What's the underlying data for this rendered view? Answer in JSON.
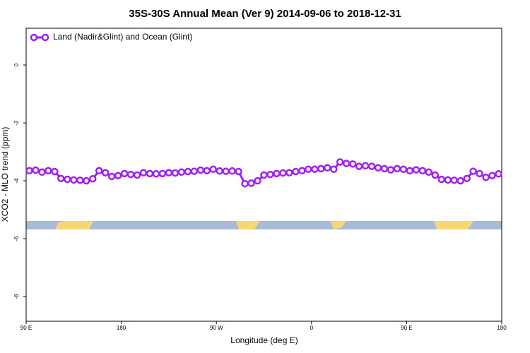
{
  "chart_data": {
    "type": "line",
    "title": "35S-30S Annual Mean (Ver 9)   2014-09-06 to 2018-12-31",
    "xlabel": "Longitude (deg E)",
    "ylabel": "XCO2 - MLO trend (ppm)",
    "x": [
      93,
      99,
      105,
      111,
      117,
      123,
      129,
      135,
      141,
      147,
      153,
      159,
      165,
      171,
      177,
      183,
      189,
      195,
      201,
      207,
      213,
      219,
      225,
      231,
      237,
      243,
      249,
      255,
      261,
      267,
      273,
      279,
      285,
      291,
      297,
      303,
      309,
      315,
      321,
      327,
      333,
      339,
      345,
      351,
      357,
      363,
      369,
      375,
      381,
      387,
      393,
      399,
      405,
      411,
      417,
      423,
      429,
      435,
      441,
      447,
      453,
      459,
      465,
      471,
      477,
      483,
      489,
      495,
      501,
      507,
      513,
      519,
      525,
      531,
      537
    ],
    "series": [
      {
        "name": "Land (Nadir&Glint) and Ocean (Glint)",
        "color": "#a020f0",
        "values": [
          -3.65,
          -3.63,
          -3.7,
          -3.65,
          -3.68,
          -3.92,
          -3.95,
          -3.97,
          -3.98,
          -4.0,
          -3.93,
          -3.65,
          -3.72,
          -3.85,
          -3.82,
          -3.75,
          -3.78,
          -3.8,
          -3.72,
          -3.75,
          -3.76,
          -3.75,
          -3.72,
          -3.73,
          -3.7,
          -3.68,
          -3.67,
          -3.63,
          -3.65,
          -3.6,
          -3.66,
          -3.67,
          -3.66,
          -3.68,
          -4.1,
          -4.08,
          -4.0,
          -3.8,
          -3.78,
          -3.75,
          -3.73,
          -3.72,
          -3.68,
          -3.65,
          -3.6,
          -3.6,
          -3.58,
          -3.55,
          -3.6,
          -3.35,
          -3.4,
          -3.42,
          -3.5,
          -3.48,
          -3.5,
          -3.55,
          -3.58,
          -3.62,
          -3.58,
          -3.6,
          -3.65,
          -3.62,
          -3.65,
          -3.7,
          -3.8,
          -3.95,
          -3.97,
          -3.98,
          -4.0,
          -3.92,
          -3.67,
          -3.75,
          -3.88,
          -3.82,
          -3.76
        ]
      }
    ],
    "xlim": [
      90,
      540
    ],
    "xticks": [
      {
        "value": 90,
        "label": "90 E"
      },
      180,
      {
        "value": 270,
        "label": "90 W"
      },
      {
        "value": 360,
        "label": "0"
      },
      {
        "value": 450,
        "label": "90 E"
      },
      {
        "value": 540,
        "label": "180"
      }
    ],
    "ylim": [
      -8.85,
      1.27
    ],
    "yticks": [
      0,
      -2,
      -4,
      -6,
      -8
    ],
    "legend": "top-left"
  }
}
